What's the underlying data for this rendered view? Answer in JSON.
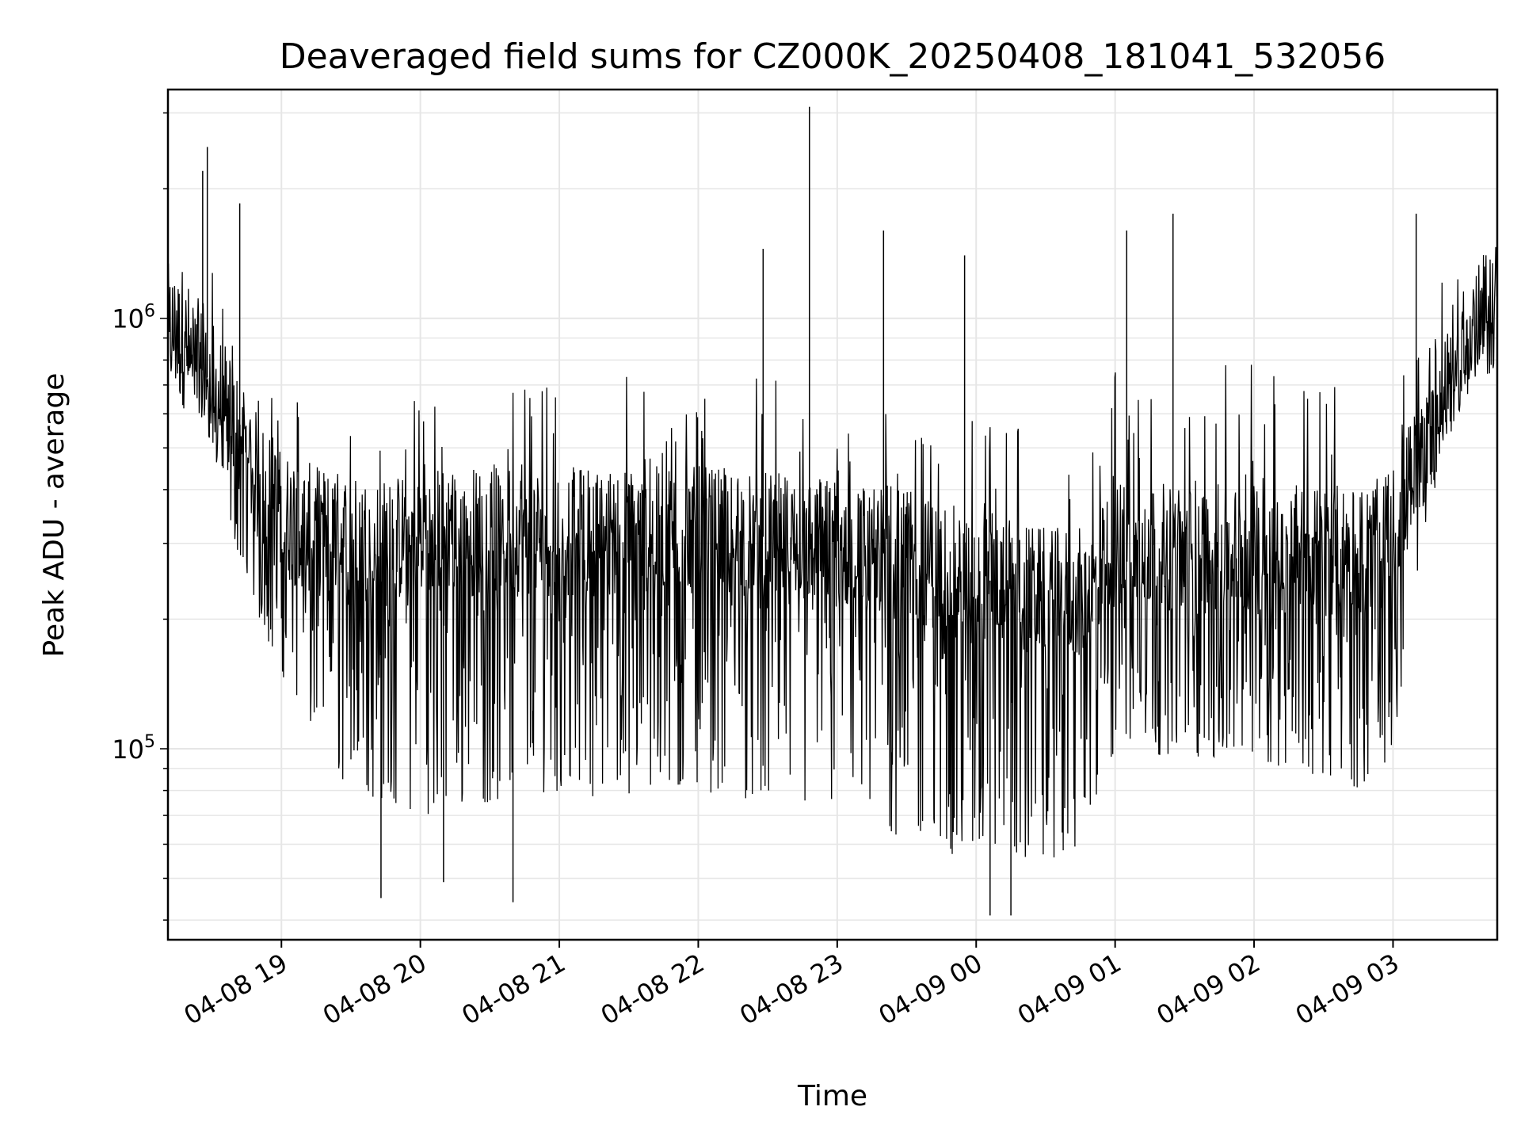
{
  "chart_data": {
    "type": "line",
    "title": "Deaveraged field sums for CZ000K_20250408_181041_532056",
    "xlabel": "Time",
    "ylabel": "Peak ADU - average",
    "y_scale": "log",
    "ylim": [
      36000,
      3400000
    ],
    "xlim": [
      "2025-04-08 18:11",
      "2025-04-09 03:45"
    ],
    "x_ticks": [
      {
        "time": "2025-04-08 19:00",
        "label": "04-08 19"
      },
      {
        "time": "2025-04-08 20:00",
        "label": "04-08 20"
      },
      {
        "time": "2025-04-08 21:00",
        "label": "04-08 21"
      },
      {
        "time": "2025-04-08 22:00",
        "label": "04-08 22"
      },
      {
        "time": "2025-04-08 23:00",
        "label": "04-08 23"
      },
      {
        "time": "2025-04-09 00:00",
        "label": "04-09 00"
      },
      {
        "time": "2025-04-09 01:00",
        "label": "04-09 01"
      },
      {
        "time": "2025-04-09 02:00",
        "label": "04-09 02"
      },
      {
        "time": "2025-04-09 03:00",
        "label": "04-09 03"
      }
    ],
    "y_ticks": [
      {
        "value": 100000,
        "base": "10",
        "exp": "5"
      },
      {
        "value": 1000000,
        "base": "10",
        "exp": "6"
      }
    ],
    "grid": true,
    "line_color": "#000000",
    "series": [
      {
        "x": [
          "2025-04-08 18:11",
          "2025-04-08 18:20",
          "2025-04-08 18:30",
          "2025-04-08 18:40",
          "2025-04-08 18:50",
          "2025-04-08 19:00",
          "2025-04-08 19:15",
          "2025-04-08 19:30",
          "2025-04-08 19:45",
          "2025-04-08 20:00",
          "2025-04-08 20:30",
          "2025-04-08 21:00",
          "2025-04-08 21:30",
          "2025-04-08 22:00",
          "2025-04-08 22:30",
          "2025-04-08 23:00",
          "2025-04-08 23:30",
          "2025-04-09 00:00",
          "2025-04-09 00:30",
          "2025-04-09 00:50",
          "2025-04-09 01:00",
          "2025-04-09 01:30",
          "2025-04-09 02:00",
          "2025-04-09 02:30",
          "2025-04-09 02:50",
          "2025-04-09 03:00",
          "2025-04-09 03:10",
          "2025-04-09 03:20",
          "2025-04-09 03:30",
          "2025-04-09 03:45"
        ],
        "y_typical": [
          950000,
          850000,
          700000,
          550000,
          420000,
          350000,
          320000,
          310000,
          300000,
          320000,
          320000,
          320000,
          320000,
          320000,
          310000,
          300000,
          280000,
          250000,
          230000,
          230000,
          300000,
          290000,
          290000,
          290000,
          290000,
          320000,
          450000,
          650000,
          850000,
          1100000
        ],
        "y_low": [
          880000,
          700000,
          500000,
          300000,
          200000,
          150000,
          100000,
          80000,
          75000,
          70000,
          75000,
          80000,
          75000,
          80000,
          75000,
          70000,
          60000,
          55000,
          55000,
          60000,
          100000,
          95000,
          95000,
          85000,
          80000,
          100000,
          250000,
          450000,
          650000,
          950000
        ],
        "y_high": [
          1150000,
          1400000,
          1300000,
          900000,
          700000,
          650000,
          650000,
          700000,
          680000,
          700000,
          750000,
          750000,
          780000,
          750000,
          750000,
          700000,
          650000,
          650000,
          650000,
          650000,
          800000,
          850000,
          800000,
          750000,
          700000,
          700000,
          850000,
          1200000,
          1300000,
          1250000
        ],
        "spikes": [
          {
            "x": "2025-04-08 18:26",
            "y": 2200000
          },
          {
            "x": "2025-04-08 18:28",
            "y": 2500000
          },
          {
            "x": "2025-04-08 18:42",
            "y": 1850000
          },
          {
            "x": "2025-04-08 19:43",
            "y": 45000
          },
          {
            "x": "2025-04-08 20:10",
            "y": 49000
          },
          {
            "x": "2025-04-08 20:40",
            "y": 44000
          },
          {
            "x": "2025-04-08 22:28",
            "y": 1450000
          },
          {
            "x": "2025-04-08 22:48",
            "y": 3100000
          },
          {
            "x": "2025-04-08 23:20",
            "y": 1600000
          },
          {
            "x": "2025-04-08 23:55",
            "y": 1400000
          },
          {
            "x": "2025-04-09 00:06",
            "y": 41000
          },
          {
            "x": "2025-04-09 00:15",
            "y": 41000
          },
          {
            "x": "2025-04-09 01:05",
            "y": 1600000
          },
          {
            "x": "2025-04-09 01:25",
            "y": 1750000
          },
          {
            "x": "2025-04-09 03:10",
            "y": 1750000
          }
        ]
      }
    ]
  }
}
